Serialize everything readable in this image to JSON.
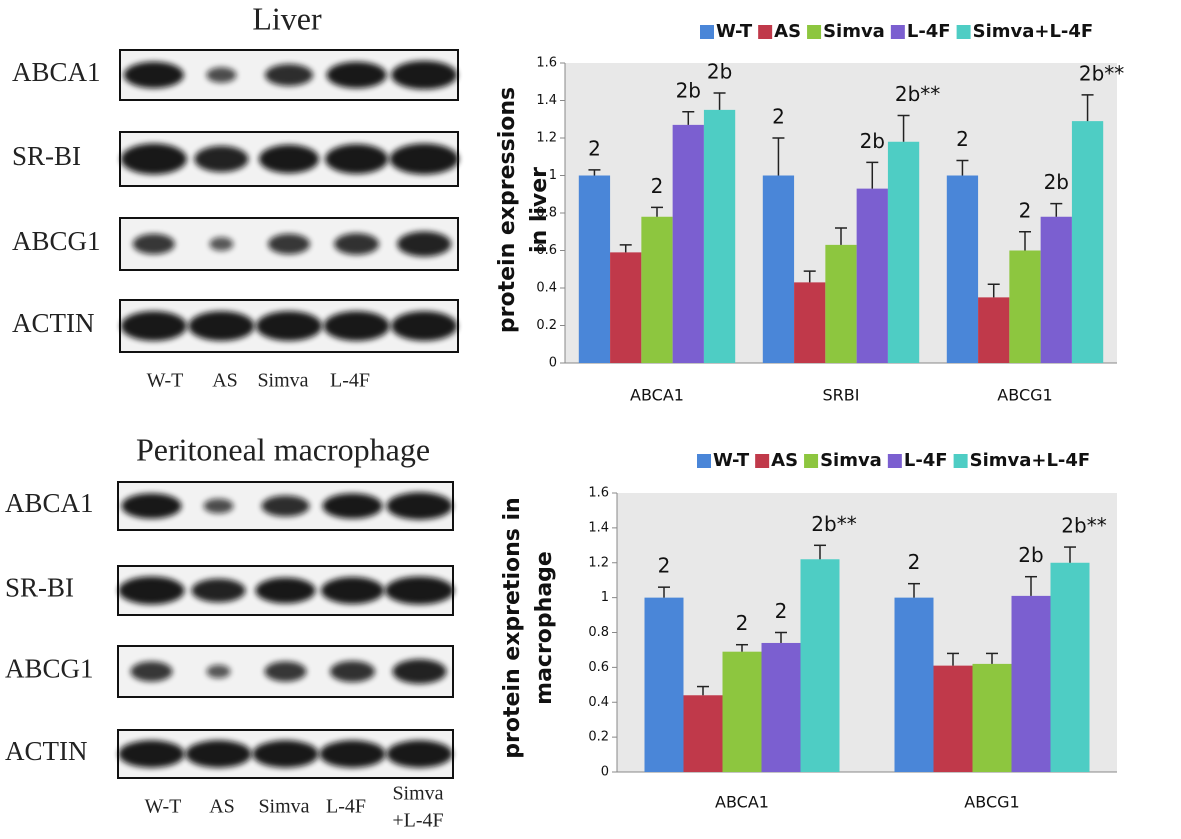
{
  "blots": [
    {
      "title": "Liver",
      "rows": [
        "ABCA1",
        "SR-BI",
        "ABCG1",
        "ACTIN"
      ],
      "lanes": [
        "W-T",
        "AS",
        "Simva",
        "L-4F",
        null
      ]
    },
    {
      "title": "Peritoneal macrophage",
      "rows": [
        "ABCA1",
        "SR-BI",
        "ABCG1",
        "ACTIN"
      ],
      "lanes": [
        "W-T",
        "AS",
        "Simva",
        "L-4F",
        [
          "Simva",
          "+L-4F"
        ]
      ]
    }
  ],
  "chart_data": [
    {
      "type": "bar",
      "ylabel_lines": [
        "protein expressions",
        "in  liver"
      ],
      "categories": [
        "ABCA1",
        "SRBI",
        "ABCG1"
      ],
      "ylim": [
        0,
        1.6
      ],
      "yticks": [
        0,
        0.2,
        0.4,
        0.6,
        0.8,
        1,
        1.2,
        1.4,
        1.6
      ],
      "legend": "top",
      "series": [
        {
          "name": "W-T",
          "color": "#4a86d8",
          "values": [
            1,
            1,
            1
          ],
          "errors": [
            0.03,
            0.2,
            0.08
          ],
          "annotations": [
            "2",
            "2",
            "2"
          ]
        },
        {
          "name": "AS",
          "color": "#c0394a",
          "values": [
            0.59,
            0.43,
            0.35
          ],
          "errors": [
            0.04,
            0.06,
            0.07
          ],
          "annotations": [
            null,
            null,
            null
          ]
        },
        {
          "name": "Simva",
          "color": "#8dc63f",
          "values": [
            0.78,
            0.63,
            0.6
          ],
          "errors": [
            0.05,
            0.09,
            0.1
          ],
          "annotations": [
            "2",
            null,
            "2"
          ]
        },
        {
          "name": "L-4F",
          "color": "#7b5fd0",
          "values": [
            1.27,
            0.93,
            0.78
          ],
          "errors": [
            0.07,
            0.14,
            0.07
          ],
          "annotations": [
            "2b",
            "2b",
            "2b"
          ]
        },
        {
          "name": "Simva+L-4F",
          "color": "#4ecdc4",
          "values": [
            1.35,
            1.18,
            1.29
          ],
          "errors": [
            0.09,
            0.14,
            0.14
          ],
          "annotations": [
            "2b",
            "2b**",
            "2b**"
          ]
        }
      ]
    },
    {
      "type": "bar",
      "ylabel_lines": [
        "protein expretions in",
        "macrophage"
      ],
      "categories": [
        "ABCA1",
        "ABCG1"
      ],
      "ylim": [
        0,
        1.6
      ],
      "yticks": [
        0,
        0.2,
        0.4,
        0.6,
        0.8,
        1,
        1.2,
        1.4,
        1.6
      ],
      "legend": "top",
      "series": [
        {
          "name": "W-T",
          "color": "#4a86d8",
          "values": [
            1,
            1
          ],
          "errors": [
            0.06,
            0.08
          ],
          "annotations": [
            "2",
            "2"
          ]
        },
        {
          "name": "AS",
          "color": "#c0394a",
          "values": [
            0.44,
            0.61
          ],
          "errors": [
            0.05,
            0.07
          ],
          "annotations": [
            null,
            null
          ]
        },
        {
          "name": "Simva",
          "color": "#8dc63f",
          "values": [
            0.69,
            0.62
          ],
          "errors": [
            0.04,
            0.06
          ],
          "annotations": [
            "2",
            null
          ]
        },
        {
          "name": "L-4F",
          "color": "#7b5fd0",
          "values": [
            0.74,
            1.01
          ],
          "errors": [
            0.06,
            0.11
          ],
          "annotations": [
            "2",
            "2b"
          ]
        },
        {
          "name": "Simva+L-4F",
          "color": "#4ecdc4",
          "values": [
            1.22,
            1.2
          ],
          "errors": [
            0.08,
            0.09
          ],
          "annotations": [
            "2b**",
            "2b**"
          ]
        }
      ]
    }
  ]
}
